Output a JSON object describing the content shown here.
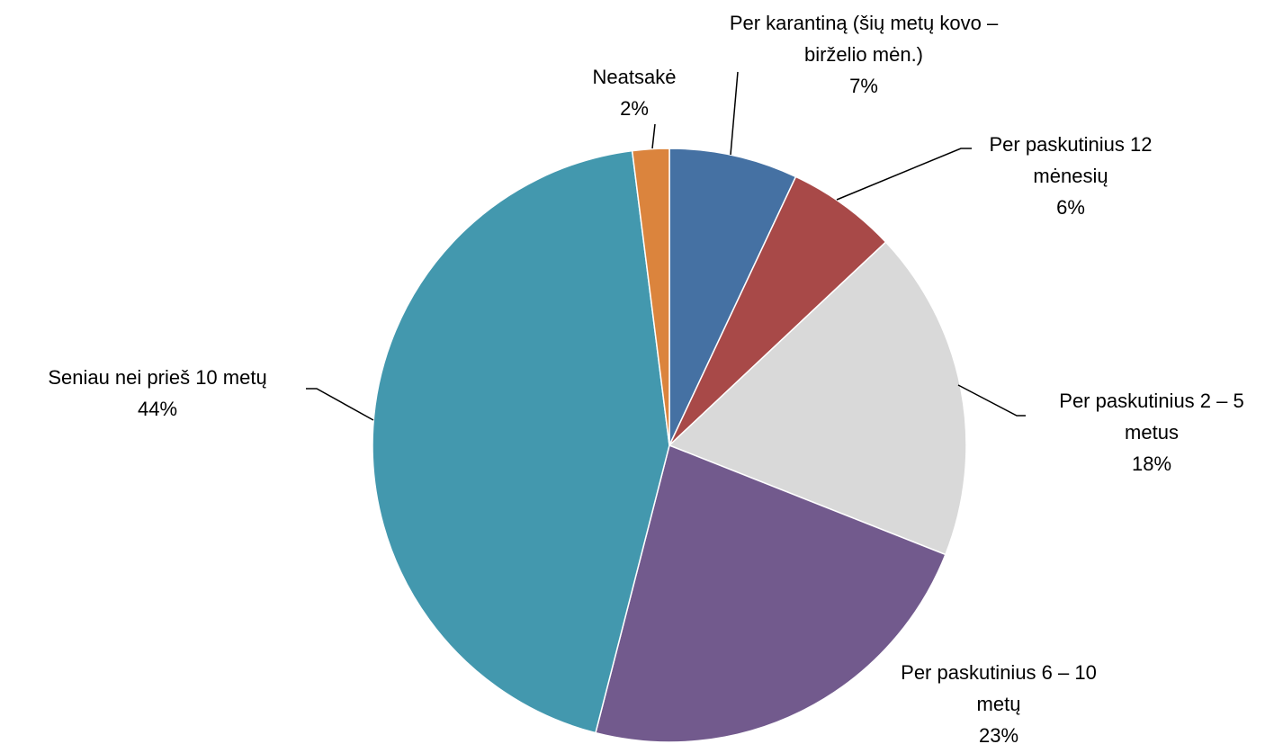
{
  "chart_data": {
    "type": "pie",
    "categories": [
      "Per karantiną (šių metų kovo – birželio mėn.)",
      "Per paskutinius 12 mėnesių",
      "Per paskutinius 2 – 5 metus",
      "Per paskutinius 6 – 10 metų",
      "Seniau nei prieš 10 metų",
      "Neatsakė"
    ],
    "values": [
      7,
      6,
      18,
      23,
      44,
      2
    ],
    "value_labels": [
      "7%",
      "6%",
      "18%",
      "23%",
      "44%",
      "2%"
    ],
    "colors": [
      "#4571a3",
      "#a84948",
      "#d9d9d9",
      "#725a8d",
      "#4398ae",
      "#db843d"
    ]
  }
}
